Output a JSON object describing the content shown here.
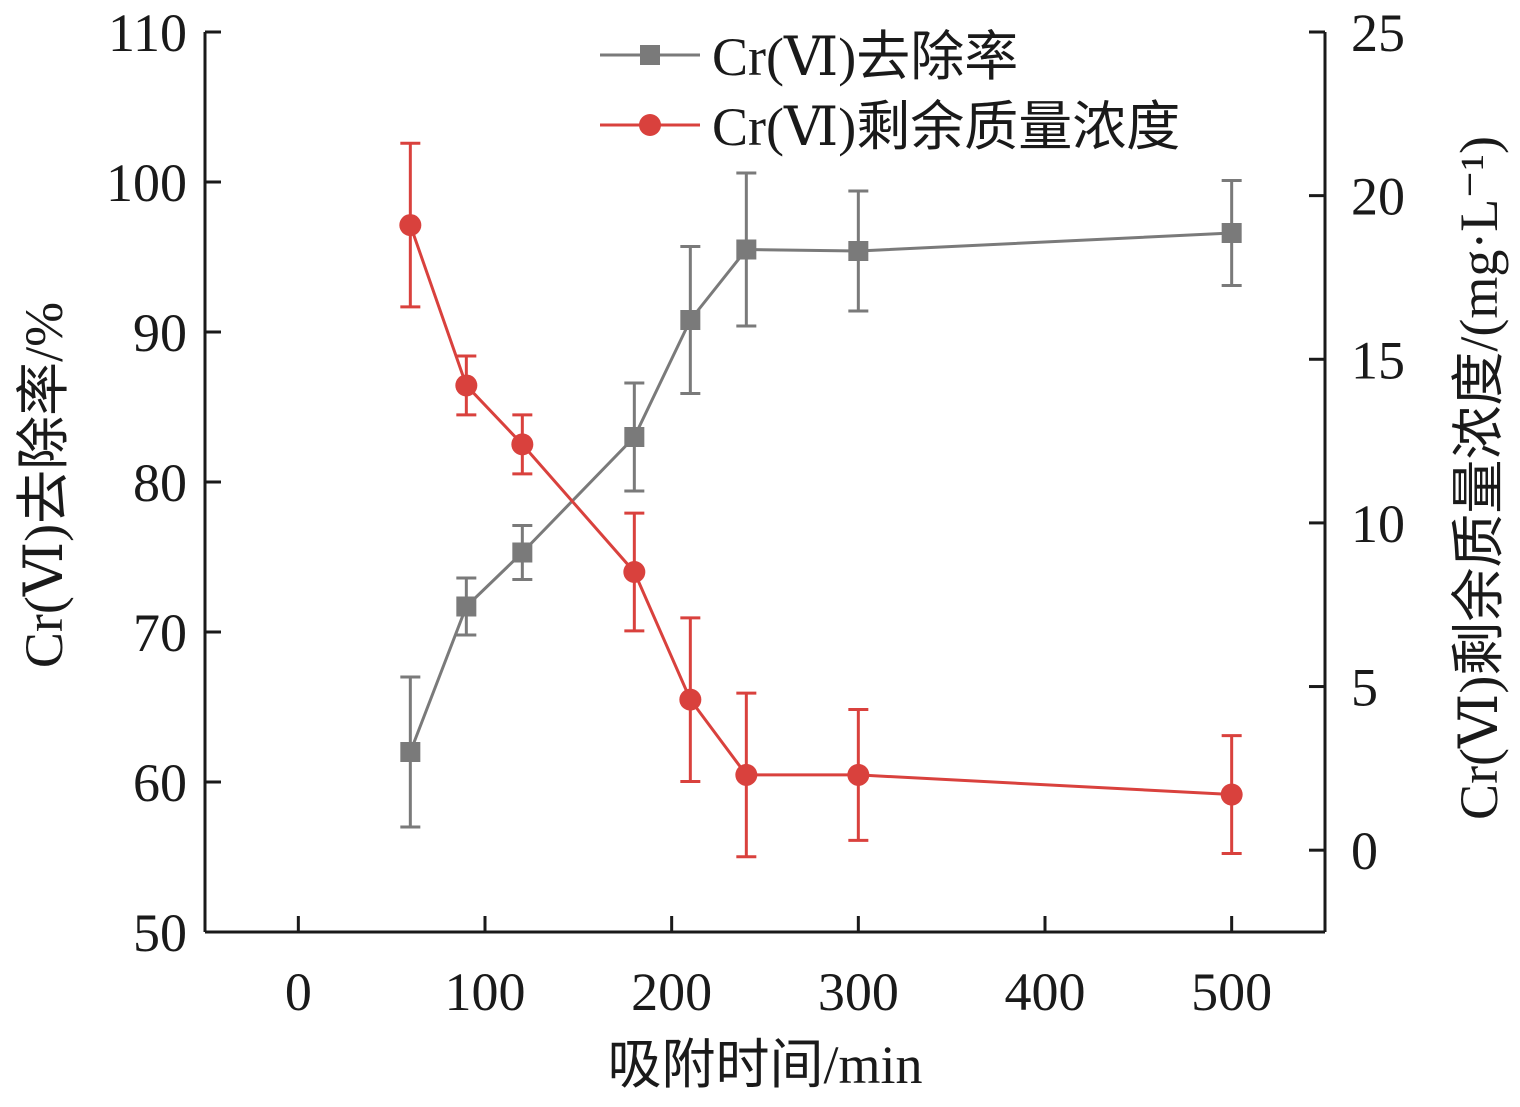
{
  "chart_data": {
    "type": "line",
    "x_label": "吸附时间/min",
    "y_left_label": "Cr(Ⅵ)去除率/%",
    "y_right_label": "Cr(Ⅵ)剩余质量浓度/(mg·L⁻¹)",
    "x_range": [
      -50,
      550
    ],
    "x_ticks": [
      0,
      100,
      200,
      300,
      400,
      500
    ],
    "y_left_range": [
      50,
      110
    ],
    "y_left_ticks": [
      50,
      60,
      70,
      80,
      90,
      100,
      110
    ],
    "y_right_range": [
      -2.5,
      25
    ],
    "y_right_ticks": [
      0,
      5,
      10,
      15,
      20,
      25
    ],
    "legend_position": "top-right",
    "grid": false,
    "series": [
      {
        "name": "Cr(Ⅵ)去除率",
        "axis": "left",
        "color": "#7a7a7a",
        "marker": "square",
        "x": [
          60,
          90,
          120,
          180,
          210,
          240,
          300,
          500
        ],
        "y": [
          62,
          71.7,
          75.3,
          83,
          90.8,
          95.5,
          95.4,
          96.6
        ],
        "error": [
          5,
          1.9,
          1.8,
          3.6,
          4.9,
          5.1,
          4,
          3.5
        ]
      },
      {
        "name": "Cr(Ⅵ)剩余质量浓度",
        "axis": "right",
        "color": "#d9413d",
        "marker": "circle",
        "x": [
          60,
          90,
          120,
          180,
          210,
          240,
          300,
          500
        ],
        "y": [
          19.1,
          14.2,
          12.4,
          8.5,
          4.6,
          2.3,
          2.3,
          1.7
        ],
        "error": [
          2.5,
          0.9,
          0.9,
          1.8,
          2.5,
          2.5,
          2.0,
          1.8
        ]
      }
    ]
  }
}
